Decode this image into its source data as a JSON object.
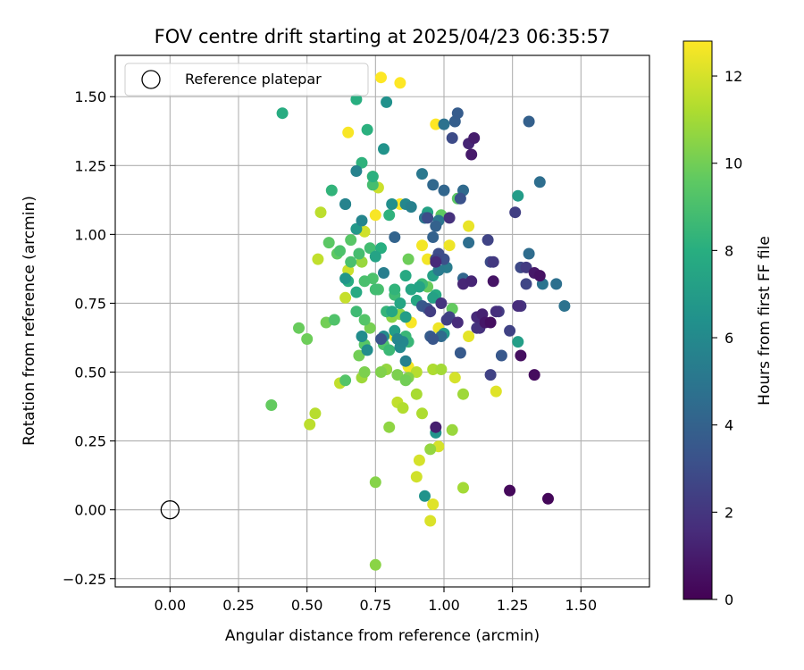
{
  "chart_data": {
    "type": "scatter",
    "title": "FOV centre drift starting at 2025/04/23 06:35:57",
    "xlabel": "Angular distance from reference (arcmin)",
    "ylabel": "Rotation from reference (arcmin)",
    "xlim": [
      -0.2,
      1.75
    ],
    "ylim": [
      -0.28,
      1.65
    ],
    "xticks": [
      "0.00",
      "0.25",
      "0.50",
      "0.75",
      "1.00",
      "1.25",
      "1.50"
    ],
    "xtick_values": [
      0,
      0.25,
      0.5,
      0.75,
      1.0,
      1.25,
      1.5
    ],
    "yticks": [
      "−0.25",
      "0.00",
      "0.25",
      "0.50",
      "0.75",
      "1.00",
      "1.25",
      "1.50"
    ],
    "ytick_values": [
      -0.25,
      0,
      0.25,
      0.5,
      0.75,
      1.0,
      1.25,
      1.5
    ],
    "grid": true,
    "colormap": "viridis",
    "colorbar": {
      "label": "Hours from first FF file",
      "range": [
        0,
        12.8
      ],
      "ticks": [
        "0",
        "2",
        "4",
        "6",
        "8",
        "10",
        "12"
      ],
      "tick_values": [
        0,
        2,
        4,
        6,
        8,
        10,
        12
      ]
    },
    "legend": {
      "position": "top-left",
      "entries": [
        "Reference platepar"
      ]
    },
    "reference_point": {
      "x": 0.0,
      "y": 0.0,
      "label": "Reference platepar"
    },
    "points": [
      [
        1.38,
        0.04,
        0.2
      ],
      [
        1.24,
        0.07,
        0.3
      ],
      [
        1.33,
        0.49,
        0.4
      ],
      [
        1.28,
        0.56,
        0.5
      ],
      [
        1.35,
        0.85,
        0.6
      ],
      [
        1.18,
        0.83,
        0.7
      ],
      [
        1.15,
        0.68,
        0.8
      ],
      [
        1.1,
        1.29,
        0.9
      ],
      [
        1.11,
        1.35,
        1.0
      ],
      [
        0.97,
        0.3,
        1.1
      ],
      [
        1.09,
        1.33,
        1.3
      ],
      [
        1.07,
        0.82,
        1.4
      ],
      [
        1.12,
        0.7,
        1.5
      ],
      [
        1.27,
        0.74,
        1.6
      ],
      [
        1.19,
        0.72,
        1.7
      ],
      [
        1.02,
        1.06,
        1.8
      ],
      [
        0.99,
        0.75,
        1.9
      ],
      [
        1.12,
        0.66,
        2.0
      ],
      [
        1.18,
        0.9,
        2.1
      ],
      [
        1.2,
        0.72,
        2.2
      ],
      [
        0.95,
        0.72,
        2.3
      ],
      [
        1.01,
        0.69,
        2.4
      ],
      [
        1.17,
        0.49,
        2.5
      ],
      [
        1.16,
        0.98,
        2.6
      ],
      [
        1.3,
        0.82,
        2.7
      ],
      [
        1.28,
        0.88,
        2.8
      ],
      [
        1.03,
        1.35,
        2.9
      ],
      [
        0.98,
        0.93,
        3.0
      ],
      [
        1.0,
        0.91,
        3.1
      ],
      [
        1.06,
        1.13,
        3.2
      ],
      [
        0.94,
        0.73,
        3.3
      ],
      [
        0.96,
        0.62,
        3.4
      ],
      [
        1.21,
        0.56,
        3.5
      ],
      [
        1.06,
        0.57,
        3.6
      ],
      [
        1.05,
        1.44,
        3.7
      ],
      [
        1.04,
        1.41,
        3.8
      ],
      [
        1.31,
        1.41,
        3.9
      ],
      [
        0.96,
        0.99,
        4.0
      ],
      [
        0.82,
        0.99,
        4.1
      ],
      [
        1.0,
        1.16,
        4.2
      ],
      [
        0.96,
        1.18,
        4.3
      ],
      [
        1.07,
        1.16,
        4.4
      ],
      [
        1.31,
        0.93,
        4.5
      ],
      [
        1.35,
        1.19,
        4.6
      ],
      [
        1.41,
        0.82,
        4.7
      ],
      [
        1.44,
        0.74,
        4.8
      ],
      [
        1.36,
        0.82,
        4.9
      ],
      [
        0.93,
        1.06,
        5.0
      ],
      [
        0.92,
        1.22,
        5.1
      ],
      [
        0.98,
        0.87,
        5.2
      ],
      [
        1.01,
        0.88,
        5.3
      ],
      [
        0.78,
        0.86,
        5.4
      ],
      [
        0.86,
        0.54,
        5.5
      ],
      [
        0.68,
        1.23,
        5.6
      ],
      [
        0.64,
        1.11,
        5.7
      ],
      [
        0.7,
        1.05,
        5.8
      ],
      [
        0.86,
        1.11,
        5.9
      ],
      [
        0.84,
        0.59,
        6.0
      ],
      [
        0.78,
        0.63,
        6.1
      ],
      [
        0.72,
        0.58,
        6.2
      ],
      [
        0.81,
        1.11,
        6.3
      ],
      [
        0.79,
        1.48,
        6.4
      ],
      [
        0.93,
        0.05,
        6.5
      ],
      [
        0.97,
        0.28,
        6.6
      ],
      [
        0.64,
        0.84,
        6.7
      ],
      [
        0.68,
        1.02,
        6.8
      ],
      [
        1.0,
        0.64,
        6.9
      ],
      [
        1.27,
        1.14,
        7.0
      ],
      [
        1.27,
        0.61,
        7.1
      ],
      [
        0.96,
        0.85,
        7.2
      ],
      [
        0.94,
        1.08,
        7.3
      ],
      [
        0.75,
        0.92,
        7.4
      ],
      [
        0.84,
        0.75,
        7.5
      ],
      [
        0.9,
        0.76,
        7.6
      ],
      [
        0.86,
        0.85,
        7.7
      ],
      [
        0.97,
        0.78,
        7.8
      ],
      [
        0.41,
        1.44,
        7.9
      ],
      [
        0.68,
        1.49,
        8.0
      ],
      [
        0.72,
        1.38,
        8.1
      ],
      [
        0.8,
        1.07,
        8.2
      ],
      [
        0.82,
        0.8,
        8.3
      ],
      [
        0.79,
        0.72,
        8.4
      ],
      [
        0.86,
        0.63,
        8.5
      ],
      [
        0.92,
        0.82,
        8.6
      ],
      [
        0.68,
        0.72,
        8.7
      ],
      [
        0.73,
        0.95,
        8.8
      ],
      [
        0.74,
        1.18,
        8.9
      ],
      [
        0.71,
        0.83,
        9.0
      ],
      [
        0.76,
        0.8,
        9.0
      ],
      [
        0.74,
        0.84,
        9.1
      ],
      [
        0.78,
        0.6,
        9.2
      ],
      [
        0.71,
        0.69,
        9.3
      ],
      [
        0.66,
        0.98,
        9.4
      ],
      [
        0.58,
        0.97,
        9.5
      ],
      [
        0.61,
        0.93,
        9.6
      ],
      [
        0.37,
        0.38,
        9.7
      ],
      [
        0.47,
        0.66,
        9.8
      ],
      [
        0.5,
        0.62,
        9.9
      ],
      [
        0.57,
        0.68,
        10.0
      ],
      [
        0.69,
        0.56,
        10.0
      ],
      [
        0.73,
        0.66,
        10.1
      ],
      [
        0.71,
        0.5,
        10.2
      ],
      [
        0.77,
        0.5,
        10.3
      ],
      [
        0.87,
        0.48,
        10.3
      ],
      [
        0.75,
        0.1,
        10.4
      ],
      [
        0.75,
        -0.2,
        10.5
      ],
      [
        0.8,
        0.3,
        10.6
      ],
      [
        0.95,
        0.22,
        10.7
      ],
      [
        1.03,
        0.29,
        10.8
      ],
      [
        1.07,
        0.42,
        10.9
      ],
      [
        1.07,
        0.08,
        11.0
      ],
      [
        0.9,
        0.42,
        11.1
      ],
      [
        0.92,
        0.35,
        11.2
      ],
      [
        0.85,
        0.37,
        11.3
      ],
      [
        0.53,
        0.35,
        11.4
      ],
      [
        0.51,
        0.31,
        11.5
      ],
      [
        0.62,
        0.46,
        11.6
      ],
      [
        0.64,
        0.77,
        11.7
      ],
      [
        0.65,
        0.87,
        11.8
      ],
      [
        0.71,
        1.01,
        11.9
      ],
      [
        0.54,
        0.91,
        11.6
      ],
      [
        0.55,
        1.08,
        11.5
      ],
      [
        0.74,
        1.21,
        11.7
      ],
      [
        0.76,
        1.17,
        11.8
      ],
      [
        0.98,
        0.23,
        12.0
      ],
      [
        0.9,
        0.12,
        11.9
      ],
      [
        0.91,
        0.18,
        12.0
      ],
      [
        0.95,
        -0.04,
        12.1
      ],
      [
        0.96,
        0.02,
        12.2
      ],
      [
        1.04,
        0.48,
        12.0
      ],
      [
        1.09,
        0.63,
        12.3
      ],
      [
        1.19,
        0.43,
        12.2
      ],
      [
        1.09,
        1.03,
        12.4
      ],
      [
        1.02,
        0.96,
        12.5
      ],
      [
        0.98,
        0.66,
        12.5
      ],
      [
        0.92,
        0.96,
        12.6
      ],
      [
        0.94,
        0.91,
        12.6
      ],
      [
        0.84,
        1.11,
        12.7
      ],
      [
        0.75,
        1.07,
        12.7
      ],
      [
        0.65,
        1.37,
        12.7
      ],
      [
        0.77,
        1.57,
        12.8
      ],
      [
        0.84,
        1.55,
        12.8
      ],
      [
        0.97,
        1.4,
        12.8
      ],
      [
        0.88,
        0.68,
        12.7
      ],
      [
        0.87,
        0.52,
        12.6
      ],
      [
        0.82,
        0.63,
        12.4
      ],
      [
        0.83,
        0.39,
        11.6
      ],
      [
        0.9,
        0.5,
        11.4
      ],
      [
        0.96,
        0.51,
        11.2
      ],
      [
        0.99,
        0.51,
        11.0
      ],
      [
        0.7,
        0.48,
        10.9
      ],
      [
        0.7,
        0.9,
        10.8
      ],
      [
        0.79,
        0.51,
        10.7
      ],
      [
        0.84,
        0.71,
        10.6
      ],
      [
        0.81,
        0.7,
        10.5
      ],
      [
        0.83,
        0.49,
        10.2
      ],
      [
        0.86,
        0.47,
        10.0
      ],
      [
        0.87,
        0.91,
        9.9
      ],
      [
        0.94,
        0.81,
        9.8
      ],
      [
        1.03,
        0.73,
        9.7
      ],
      [
        0.99,
        1.07,
        9.6
      ],
      [
        1.05,
        1.13,
        9.5
      ],
      [
        0.71,
        0.6,
        9.4
      ],
      [
        0.64,
        0.47,
        9.3
      ],
      [
        0.6,
        0.69,
        9.2
      ],
      [
        0.62,
        0.94,
        9.1
      ],
      [
        0.66,
        0.9,
        9.0
      ],
      [
        0.69,
        0.93,
        8.9
      ],
      [
        0.75,
        0.8,
        8.8
      ],
      [
        0.82,
        0.78,
        8.7
      ],
      [
        0.8,
        0.58,
        8.6
      ],
      [
        0.87,
        0.61,
        8.5
      ],
      [
        0.59,
        1.16,
        8.3
      ],
      [
        0.7,
        1.26,
        8.2
      ],
      [
        0.74,
        1.21,
        8.1
      ],
      [
        0.77,
        0.95,
        8.0
      ],
      [
        0.65,
        0.83,
        7.9
      ],
      [
        0.68,
        0.79,
        7.8
      ],
      [
        0.81,
        0.72,
        7.6
      ],
      [
        0.88,
        0.8,
        7.5
      ],
      [
        0.91,
        0.81,
        7.4
      ],
      [
        0.96,
        0.77,
        7.3
      ],
      [
        0.86,
        0.7,
        7.1
      ],
      [
        0.82,
        0.65,
        7.0
      ],
      [
        0.78,
        1.31,
        6.5
      ],
      [
        0.64,
        1.11,
        6.3
      ],
      [
        0.7,
        0.63,
        6.2
      ],
      [
        0.85,
        0.61,
        5.9
      ],
      [
        0.83,
        0.62,
        5.8
      ],
      [
        0.88,
        1.1,
        5.5
      ],
      [
        0.93,
        1.06,
        5.2
      ],
      [
        0.98,
        1.05,
        5.0
      ],
      [
        1.0,
        1.4,
        4.8
      ],
      [
        1.09,
        0.97,
        4.6
      ],
      [
        0.99,
        0.63,
        4.4
      ],
      [
        1.07,
        0.84,
        4.2
      ],
      [
        0.97,
        1.03,
        4.0
      ],
      [
        0.95,
        0.63,
        3.7
      ],
      [
        0.92,
        0.74,
        3.5
      ],
      [
        0.77,
        0.62,
        3.3
      ],
      [
        0.94,
        1.06,
        3.0
      ],
      [
        1.17,
        0.9,
        2.9
      ],
      [
        0.97,
        0.91,
        2.7
      ],
      [
        1.02,
        0.7,
        2.6
      ],
      [
        1.24,
        0.65,
        2.5
      ],
      [
        1.26,
        1.08,
        2.4
      ],
      [
        1.3,
        0.88,
        2.2
      ],
      [
        1.13,
        0.66,
        1.8
      ],
      [
        1.05,
        0.68,
        1.6
      ],
      [
        0.97,
        0.9,
        1.5
      ],
      [
        1.1,
        0.83,
        1.3
      ],
      [
        1.14,
        0.71,
        1.2
      ],
      [
        1.33,
        0.86,
        0.8
      ],
      [
        1.17,
        0.68,
        0.5
      ],
      [
        1.28,
        0.74,
        1.9
      ]
    ]
  }
}
